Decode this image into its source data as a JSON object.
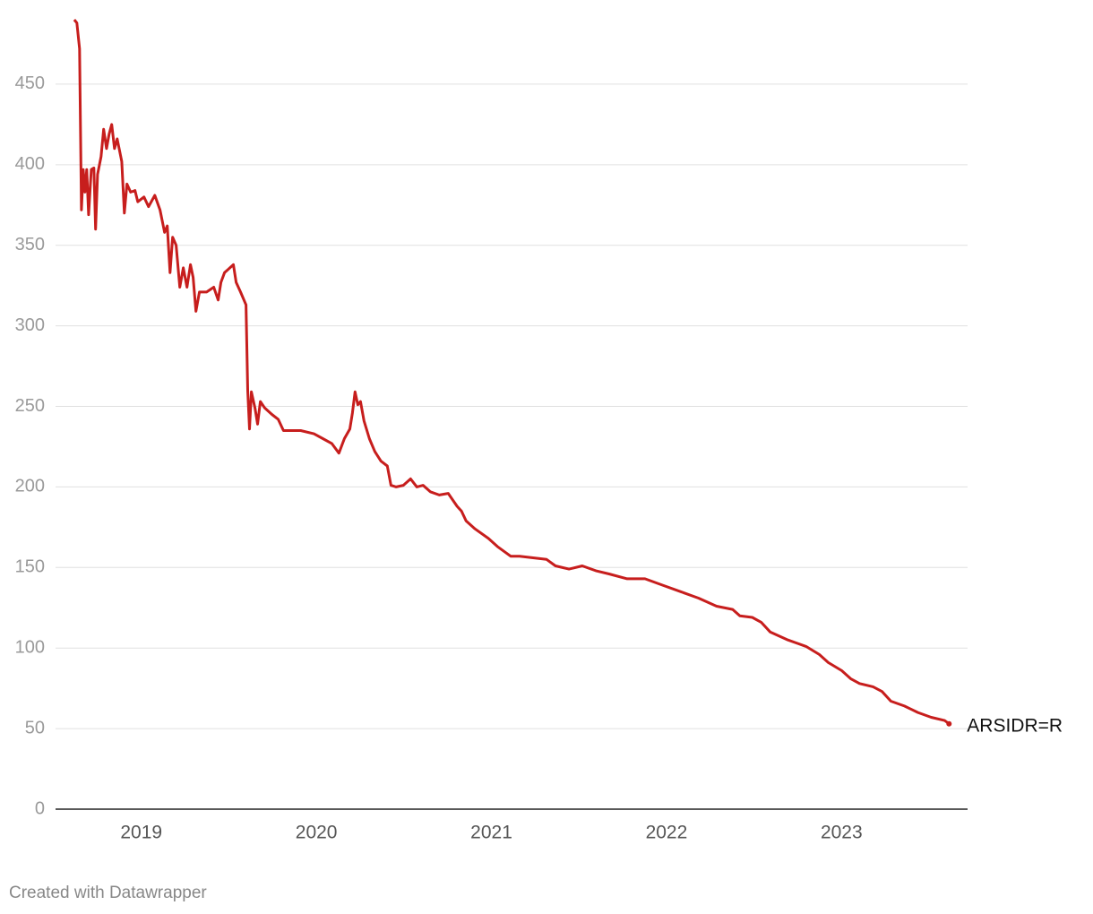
{
  "chart_data": {
    "type": "line",
    "x": [
      2018.617,
      2018.632,
      2018.647,
      2018.658,
      2018.668,
      2018.678,
      2018.688,
      2018.699,
      2018.714,
      2018.729,
      2018.739,
      2018.75,
      2018.77,
      2018.785,
      2018.801,
      2018.816,
      2018.831,
      2018.847,
      2018.862,
      2018.888,
      2018.903,
      2018.918,
      2018.939,
      2018.964,
      2018.98,
      2019.015,
      2019.041,
      2019.077,
      2019.107,
      2019.133,
      2019.148,
      2019.164,
      2019.179,
      2019.199,
      2019.22,
      2019.24,
      2019.261,
      2019.281,
      2019.296,
      2019.312,
      2019.332,
      2019.373,
      2019.414,
      2019.439,
      2019.455,
      2019.475,
      2019.506,
      2019.526,
      2019.542,
      2019.567,
      2019.598,
      2019.608,
      2019.618,
      2019.629,
      2019.649,
      2019.664,
      2019.68,
      2019.705,
      2019.746,
      2019.782,
      2019.812,
      2019.858,
      2019.91,
      2019.986,
      2020.037,
      2020.088,
      2020.129,
      2020.16,
      2020.191,
      2020.206,
      2020.221,
      2020.237,
      2020.252,
      2020.272,
      2020.303,
      2020.334,
      2020.369,
      2020.405,
      2020.426,
      2020.456,
      2020.497,
      2020.538,
      2020.574,
      2020.61,
      2020.651,
      2020.702,
      2020.753,
      2020.804,
      2020.829,
      2020.855,
      2020.906,
      2020.983,
      2021.034,
      2021.11,
      2021.161,
      2021.238,
      2021.315,
      2021.366,
      2021.443,
      2021.519,
      2021.596,
      2021.672,
      2021.775,
      2021.877,
      2021.979,
      2022.081,
      2022.183,
      2022.286,
      2022.378,
      2022.419,
      2022.49,
      2022.541,
      2022.592,
      2022.694,
      2022.797,
      2022.873,
      2022.924,
      2023.001,
      2023.052,
      2023.103,
      2023.18,
      2023.231,
      2023.282,
      2023.359,
      2023.436,
      2023.512,
      2023.589,
      2023.614
    ],
    "series": [
      {
        "name": "ARSIDR=R",
        "color": "#c71e1d",
        "values": [
          490,
          488,
          472,
          372,
          397,
          383,
          397,
          369,
          397,
          398,
          360,
          394,
          405,
          422,
          410,
          419,
          425,
          410,
          416,
          402,
          370,
          388,
          383,
          384,
          377,
          380,
          374,
          381,
          372,
          358,
          362,
          333,
          355,
          350,
          324,
          336,
          324,
          338,
          330,
          309,
          321,
          321,
          324,
          316,
          327,
          333,
          336,
          338,
          327,
          321,
          313,
          260,
          236,
          259,
          249,
          239,
          253,
          249,
          245,
          242,
          235,
          235,
          235,
          233,
          230,
          227,
          221,
          230,
          236,
          246,
          259,
          251,
          253,
          241,
          230,
          222,
          216,
          213,
          201,
          200,
          201,
          205,
          200,
          201,
          197,
          195,
          196,
          188,
          185,
          179,
          174,
          168,
          163,
          157,
          157,
          156,
          155,
          151,
          149,
          151,
          148,
          146,
          143,
          143,
          139,
          135,
          131,
          126,
          124,
          120,
          119,
          116,
          110,
          105,
          101,
          96,
          91,
          86,
          81,
          78,
          76,
          73,
          67,
          64,
          60,
          57,
          55,
          53
        ]
      }
    ],
    "xlim": [
      2018.51,
      2023.72
    ],
    "xticks": [
      2019,
      2020,
      2021,
      2022,
      2023
    ],
    "ylim": [
      0,
      490
    ],
    "yticks": [
      0,
      50,
      100,
      150,
      200,
      250,
      300,
      350,
      400,
      450
    ],
    "grid": true,
    "footer": "Created with Datawrapper"
  }
}
